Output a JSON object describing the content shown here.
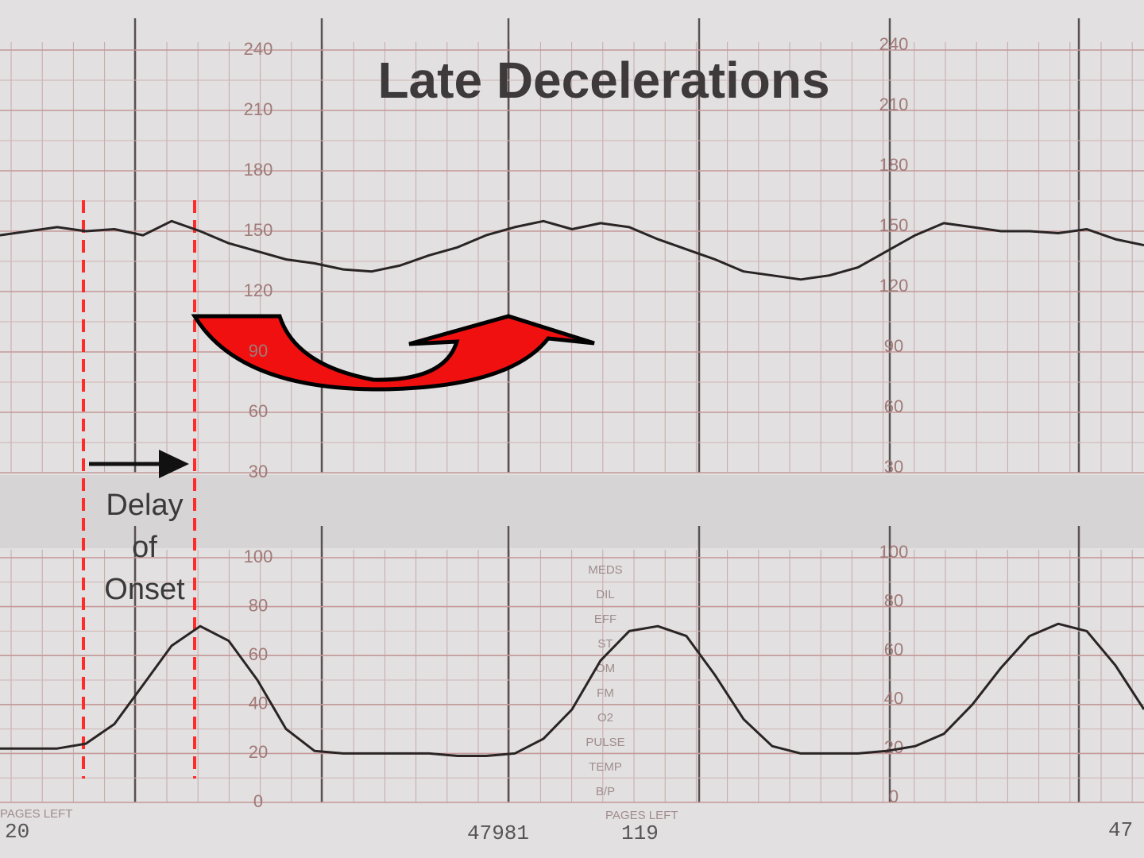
{
  "chart_data": [
    {
      "type": "line",
      "title": "Late Decelerations",
      "color": "#2a2424",
      "values": [
        148,
        150,
        152,
        150,
        151,
        148,
        155,
        150,
        144,
        140,
        136,
        134,
        131,
        130,
        133,
        138,
        142,
        148,
        152,
        155,
        151,
        154,
        152,
        146,
        141,
        136,
        130,
        128,
        126,
        128,
        132,
        140,
        148,
        154,
        152,
        150,
        150,
        149,
        151,
        146,
        143
      ],
      "ylim": [
        30,
        240
      ],
      "yticks": [
        30,
        60,
        90,
        120,
        150,
        180,
        210,
        240
      ]
    },
    {
      "type": "line",
      "color": "#2a2424",
      "values": [
        22,
        22,
        22,
        24,
        32,
        48,
        64,
        72,
        66,
        50,
        30,
        21,
        20,
        20,
        20,
        20,
        19,
        19,
        20,
        26,
        38,
        58,
        70,
        72,
        68,
        52,
        34,
        23,
        20,
        20,
        20,
        21,
        23,
        28,
        40,
        55,
        68,
        73,
        70,
        56,
        38
      ],
      "ylim": [
        0,
        100
      ],
      "yticks": [
        0,
        20,
        40,
        60,
        80,
        100
      ]
    }
  ],
  "annotation": [
    "Delay",
    "of",
    "Onset"
  ],
  "panel_labels": [
    "MEDS",
    "DIL",
    "EFF",
    "ST",
    "OM",
    "FM",
    "O2",
    "PULSE",
    "TEMP",
    "B/P"
  ],
  "footer": [
    "PAGES LEFT",
    "20",
    "47981",
    "PAGES LEFT",
    "119",
    "47"
  ]
}
